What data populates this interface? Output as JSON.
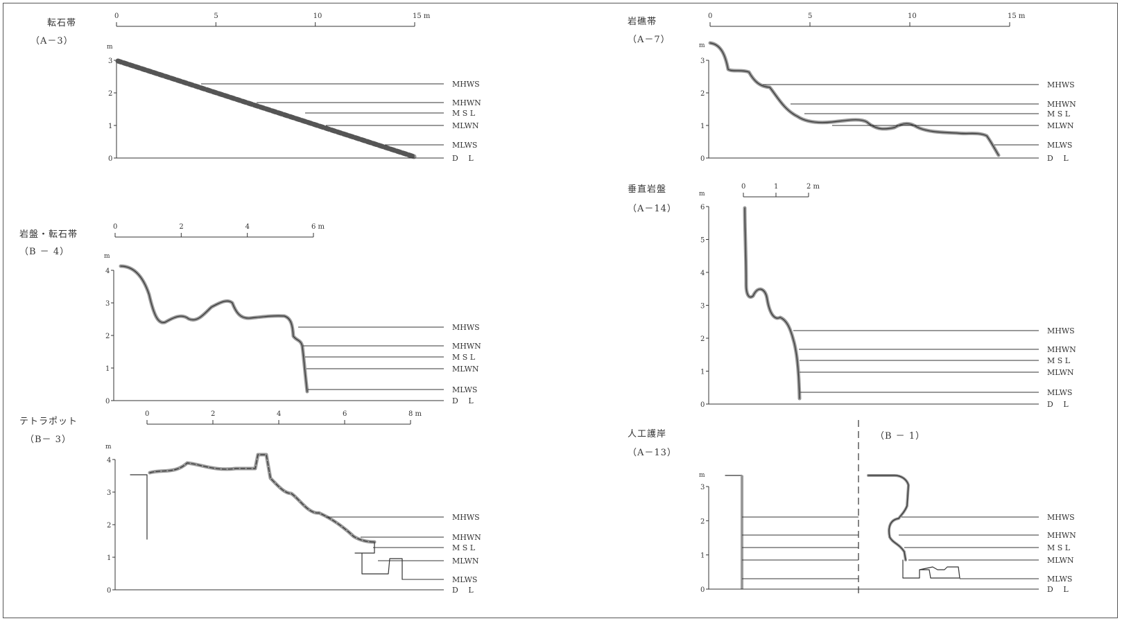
{
  "panels": [
    {
      "id": "a3",
      "title": "転石帯",
      "code": "（A－3）",
      "scale_ticks": [
        "0",
        "5",
        "10",
        "15 m"
      ],
      "depth_unit": "m",
      "depth_ticks": [
        "3",
        "2",
        "1",
        "0"
      ],
      "levels": [
        "MHWS",
        "MHWN",
        "M S L",
        "MLWN",
        "MLWS",
        "D　 L"
      ]
    },
    {
      "id": "b4",
      "title": "岩盤・転石帯",
      "code": "（B － 4）",
      "scale_ticks": [
        "0",
        "2",
        "4",
        "6 m"
      ],
      "depth_unit": "m",
      "depth_ticks": [
        "4",
        "3",
        "2",
        "1",
        "0"
      ],
      "levels": [
        "MHWS",
        "MHWN",
        "M S L",
        "MLWN",
        "MLWS",
        "D　 L"
      ]
    },
    {
      "id": "b3",
      "title": "テトラポット",
      "code": "（B－ 3）",
      "scale_ticks": [
        "0",
        "2",
        "4",
        "6",
        "8 m"
      ],
      "depth_unit": "m",
      "depth_ticks": [
        "4",
        "3",
        "2",
        "1",
        "0"
      ],
      "levels": [
        "MHWS",
        "MHWN",
        "M S L",
        "MLWN",
        "MLWS",
        "D　 L"
      ]
    },
    {
      "id": "a7",
      "title": "岩礁帯",
      "code": "（A－7）",
      "scale_ticks": [
        "0",
        "5",
        "10",
        "15 m"
      ],
      "depth_unit": "m",
      "depth_ticks": [
        "3",
        "2",
        "1",
        "0"
      ],
      "levels": [
        "MHWS",
        "MHWN",
        "M S L",
        "MLWN",
        "MLWS",
        "D　 L"
      ]
    },
    {
      "id": "a14",
      "title": "垂直岩盤",
      "code": "（A－14）",
      "scale_ticks": [
        "0",
        "1",
        "2 m"
      ],
      "depth_unit": "m",
      "depth_ticks": [
        "6",
        "5",
        "4",
        "3",
        "2",
        "1",
        "0"
      ],
      "levels": [
        "MHWS",
        "MHWN",
        "M S L",
        "MLWN",
        "MLWS",
        "D　 L"
      ]
    },
    {
      "id": "a13",
      "title": "人工護岸",
      "code": "（A－13）",
      "code2": "（B － 1）",
      "depth_unit": "m",
      "depth_ticks": [
        "3",
        "2",
        "1",
        "0"
      ],
      "levels": [
        "MHWS",
        "MHWN",
        "M S L",
        "MLWN",
        "MLWS",
        "D　 L"
      ]
    }
  ],
  "colors": {
    "ink": "#333333",
    "rock": "#9a9a9a",
    "frame": "#555555"
  }
}
